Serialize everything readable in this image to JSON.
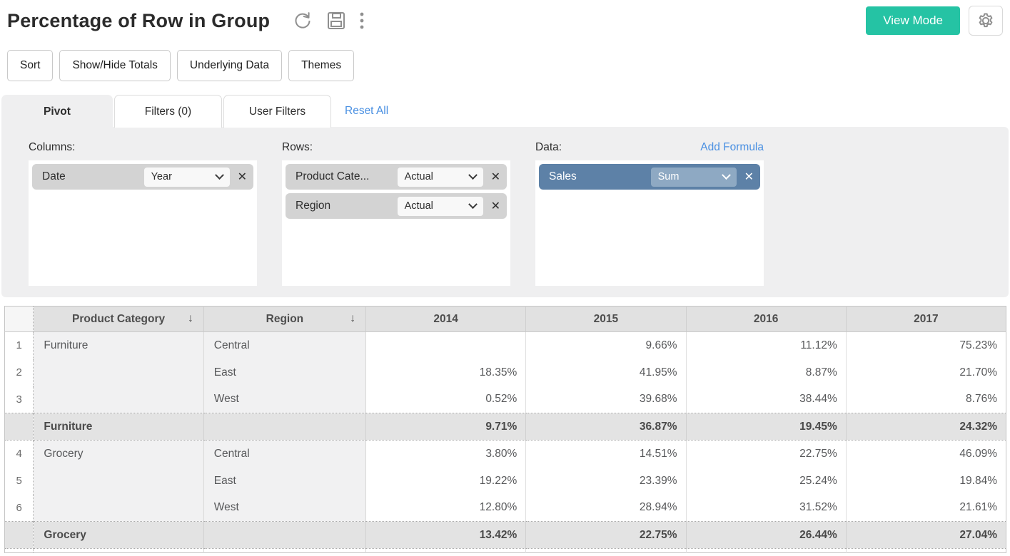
{
  "header": {
    "title": "Percentage of Row in Group",
    "view_mode_label": "View Mode"
  },
  "toolbar": {
    "buttons": [
      "Sort",
      "Show/Hide Totals",
      "Underlying Data",
      "Themes"
    ]
  },
  "tabs": {
    "items": [
      {
        "label": "Pivot",
        "active": true
      },
      {
        "label": "Filters  (0)",
        "active": false
      },
      {
        "label": "User Filters",
        "active": false
      }
    ],
    "reset_all_label": "Reset All"
  },
  "pivot_panel": {
    "columns_section": {
      "label": "Columns:",
      "fields": [
        {
          "name": "Date",
          "aggregation": "Year"
        }
      ]
    },
    "rows_section": {
      "label": "Rows:",
      "fields": [
        {
          "name": "Product Cate...",
          "aggregation": "Actual"
        },
        {
          "name": "Region",
          "aggregation": "Actual"
        }
      ]
    },
    "data_section": {
      "label": "Data:",
      "add_formula_label": "Add Formula",
      "fields": [
        {
          "name": "Sales",
          "aggregation": "Sum"
        }
      ]
    }
  },
  "table": {
    "headers": [
      "Product Category",
      "Region",
      "2014",
      "2015",
      "2016",
      "2017"
    ],
    "sorted_columns": [
      "Product Category",
      "Region"
    ],
    "rows": [
      {
        "num": "1",
        "category": "Furniture",
        "region": "Central",
        "values": [
          "",
          "9.66%",
          "11.12%",
          "75.23%"
        ],
        "type": "data"
      },
      {
        "num": "2",
        "category": "",
        "region": "East",
        "values": [
          "18.35%",
          "41.95%",
          "8.87%",
          "21.70%"
        ],
        "type": "data"
      },
      {
        "num": "3",
        "category": "",
        "region": "West",
        "values": [
          "0.52%",
          "39.68%",
          "38.44%",
          "8.76%"
        ],
        "type": "data"
      },
      {
        "num": "",
        "category": "Furniture",
        "region": "",
        "values": [
          "9.71%",
          "36.87%",
          "19.45%",
          "24.32%"
        ],
        "type": "total"
      },
      {
        "num": "4",
        "category": "Grocery",
        "region": "Central",
        "values": [
          "3.80%",
          "14.51%",
          "22.75%",
          "46.09%"
        ],
        "type": "data"
      },
      {
        "num": "5",
        "category": "",
        "region": "East",
        "values": [
          "19.22%",
          "23.39%",
          "25.24%",
          "19.84%"
        ],
        "type": "data"
      },
      {
        "num": "6",
        "category": "",
        "region": "West",
        "values": [
          "12.80%",
          "28.94%",
          "31.52%",
          "21.61%"
        ],
        "type": "data"
      },
      {
        "num": "",
        "category": "Grocery",
        "region": "",
        "values": [
          "13.42%",
          "22.75%",
          "26.44%",
          "27.04%"
        ],
        "type": "total"
      }
    ]
  },
  "colors": {
    "accent_teal": "#25c3a4",
    "link_blue": "#4a90e2",
    "data_pill_blue": "#5d81a7"
  }
}
